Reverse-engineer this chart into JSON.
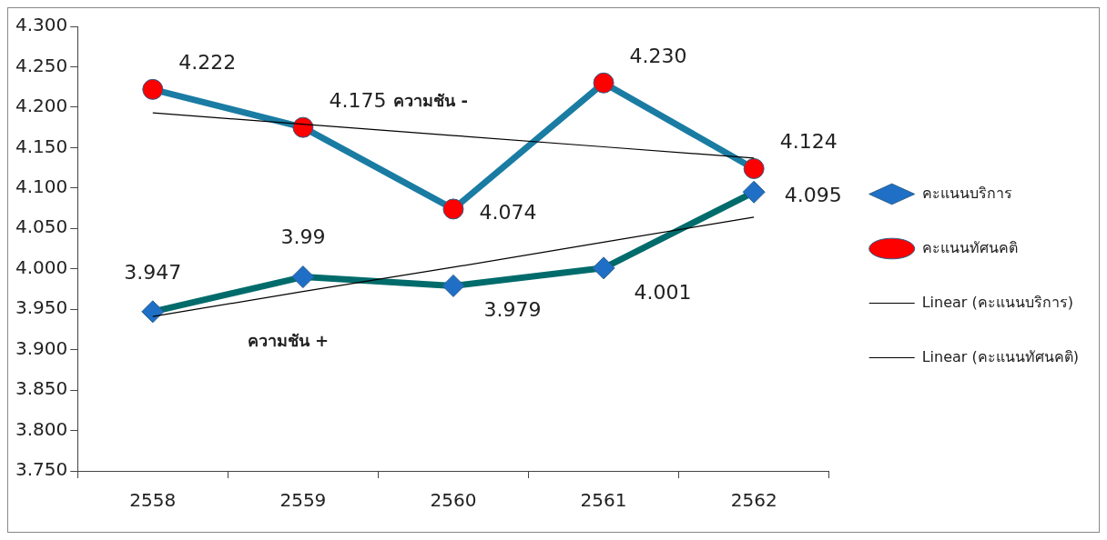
{
  "chart_data": {
    "type": "line",
    "categories": [
      "2558",
      "2559",
      "2560",
      "2561",
      "2562"
    ],
    "series": [
      {
        "name": "คะแนนบริการ",
        "color": "#006b6b",
        "colors": [
          "#1f6fc6",
          "#1f6fc6",
          "#1f6fc6",
          "#1f6fc6",
          "#1f6fc6"
        ],
        "marker": "diamond",
        "values": [
          3.947,
          3.99,
          3.979,
          4.001,
          4.095
        ],
        "value_labels": [
          "3.947",
          "3.99",
          "3.979",
          "4.001",
          "4.095"
        ]
      },
      {
        "name": "คะแนนทัศนคติ",
        "color": "#1a7ca3",
        "colors": [
          "#ff0000",
          "#ff0000",
          "#ff0000",
          "#ff0000",
          "#ff0000"
        ],
        "marker": "circle",
        "values": [
          4.222,
          4.175,
          4.074,
          4.23,
          4.124
        ],
        "value_labels": [
          "4.222",
          "4.175",
          "4.074",
          "4.230",
          "4.124"
        ]
      },
      {
        "name": "Linear (คะแนนบริการ)",
        "color": "#000000",
        "marker": "none",
        "values": [
          3.941,
          3.972,
          4.002,
          4.033,
          4.064
        ]
      },
      {
        "name": "Linear (คะแนนทัศนคติ)",
        "color": "#000000",
        "marker": "none",
        "values": [
          4.193,
          4.179,
          4.165,
          4.151,
          4.137
        ]
      }
    ],
    "ylim": [
      3.75,
      4.3
    ],
    "yticks": [
      {
        "value": 3.75,
        "label": "3.750"
      },
      {
        "value": 3.8,
        "label": "3.800"
      },
      {
        "value": 3.85,
        "label": "3.850"
      },
      {
        "value": 3.9,
        "label": "3.900"
      },
      {
        "value": 3.95,
        "label": "3.950"
      },
      {
        "value": 4.0,
        "label": "4.000"
      },
      {
        "value": 4.05,
        "label": "4.050"
      },
      {
        "value": 4.1,
        "label": "4.100"
      },
      {
        "value": 4.15,
        "label": "4.150"
      },
      {
        "value": 4.2,
        "label": "4.200"
      },
      {
        "value": 4.25,
        "label": "4.250"
      },
      {
        "value": 4.3,
        "label": "4.300"
      }
    ],
    "grid": false,
    "legend": "right",
    "annotations": [
      "ความชัน -",
      "ความชัน +"
    ]
  }
}
